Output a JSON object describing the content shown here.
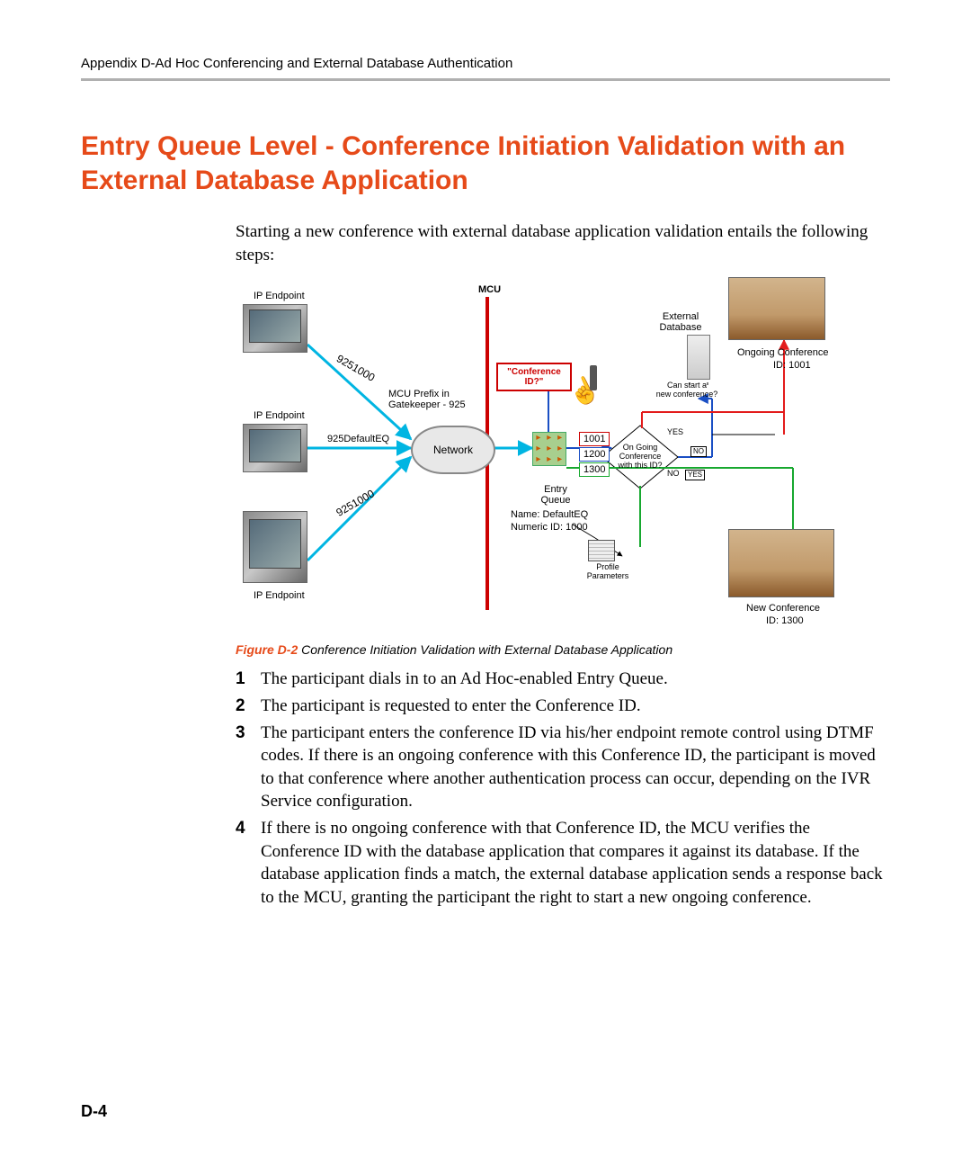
{
  "page": {
    "running_header": "Appendix D-Ad Hoc Conferencing and External Database Authentication",
    "section_title": "Entry Queue Level - Conference Initiation Validation with an External Database Application",
    "intro": "Starting a new conference with external database application validation entails the following steps:",
    "page_number": "D-4"
  },
  "colors": {
    "accent": "#e64a19",
    "rule": "#b0b0b0",
    "mcu_line": "#cc0000",
    "flow_cyan": "#00b5e2",
    "flow_blue": "#1a4fc4",
    "flow_green": "#17a82f",
    "flow_red": "#e31b1b",
    "id_red": "#cc0000",
    "id_blue": "#1a4fc4",
    "id_green": "#17a82f"
  },
  "figure": {
    "label": "Figure D-2",
    "title": "Conference Initiation Validation with External Database Application",
    "labels": {
      "ip_endpoint": "IP Endpoint",
      "mcu": "MCU",
      "external_db": "External\nDatabase",
      "ongoing_conf": "Ongoing Conference",
      "ongoing_id": "ID: 1001",
      "new_conf": "New Conference",
      "new_id": "ID: 1300",
      "conf_id_q": "\"Conference ID?\"",
      "can_start": "Can start a\nnew conference?",
      "ongoing_q": "On Going\nConference\nwith this ID?",
      "yes": "YES",
      "no": "NO",
      "mcu_prefix": "MCU Prefix in\nGatekeeper - 925",
      "nine25_1000": "9251000",
      "default_eq": "925DefaultEQ",
      "network": "Network",
      "entry_queue": "Entry\nQueue",
      "eq_name": "Name: DefaultEQ",
      "eq_id": "Numeric ID: 1000",
      "profile": "Profile\nParameters",
      "id1001": "1001",
      "id1200": "1200",
      "id1300": "1300"
    }
  },
  "steps": [
    "The participant dials in to an Ad Hoc-enabled Entry Queue.",
    "The participant is requested to enter the Conference ID.",
    "The participant enters the conference ID via his/her endpoint remote control using DTMF codes. If there is an ongoing conference with this Conference ID, the participant is moved to that conference where another authentication process can occur, depending on the IVR Service configuration.",
    "If there is no ongoing conference with that Conference ID, the MCU verifies the Conference ID with the database application that compares it against its database. If the database application finds a match, the external database application sends a response back to the MCU, granting the participant the right to start a new ongoing conference."
  ]
}
